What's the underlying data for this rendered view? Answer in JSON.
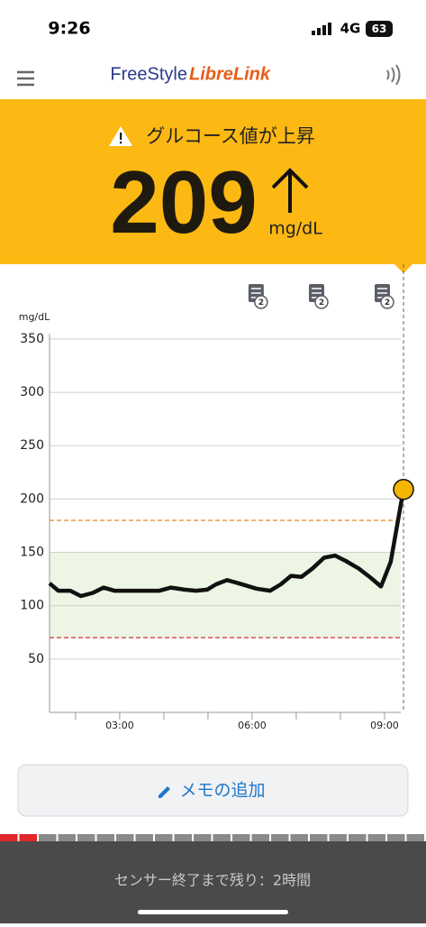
{
  "status": {
    "time": "9:26",
    "network": "4G",
    "battery": "63"
  },
  "header": {
    "logo_part1": "FreeStyle",
    "logo_part2": "LibreLink"
  },
  "banner": {
    "alert": "グルコース値が上昇",
    "value": 209,
    "unit": "mg/dL"
  },
  "chart_data": {
    "type": "line",
    "y_label": "mg/dL",
    "series": [
      {
        "name": "glucose",
        "color": "#111111",
        "x": [
          1.41,
          1.61,
          1.88,
          2.12,
          2.39,
          2.63,
          2.88,
          3.14,
          3.39,
          3.9,
          4.16,
          4.47,
          4.73,
          4.98,
          5.18,
          5.43,
          5.69,
          6.1,
          6.41,
          6.65,
          6.88,
          7.12,
          7.37,
          7.63,
          7.88,
          8.12,
          8.41,
          8.69,
          8.92,
          9.14,
          9.43
        ],
        "values": [
          121,
          114,
          114,
          109,
          112,
          117,
          114,
          114,
          114,
          114,
          117,
          115,
          114,
          115,
          120,
          124,
          121,
          116,
          114,
          120,
          128,
          127,
          135,
          145,
          147,
          142,
          135,
          126,
          118,
          141,
          209
        ]
      }
    ],
    "xlim": [
      1.41,
      9.47
    ],
    "ylim": [
      0,
      355
    ],
    "xticks": [
      {
        "value": 3,
        "label": "03:00"
      },
      {
        "value": 6,
        "label": "06:00"
      },
      {
        "value": 9,
        "label": "09:00"
      }
    ],
    "xminor": [
      2,
      4,
      5,
      7,
      8
    ],
    "yticks": [
      50,
      100,
      150,
      200,
      250,
      300,
      350
    ],
    "target_range": [
      70,
      150
    ],
    "high_limit": 180,
    "low_limit": 70,
    "memos": [
      {
        "x": 6.1,
        "count": 2
      },
      {
        "x": 7.47,
        "count": 2
      },
      {
        "x": 8.96,
        "count": 2
      }
    ]
  },
  "memo_button": "メモの追加",
  "footer": {
    "sensor": "センサー終了まで残り：2時間"
  }
}
